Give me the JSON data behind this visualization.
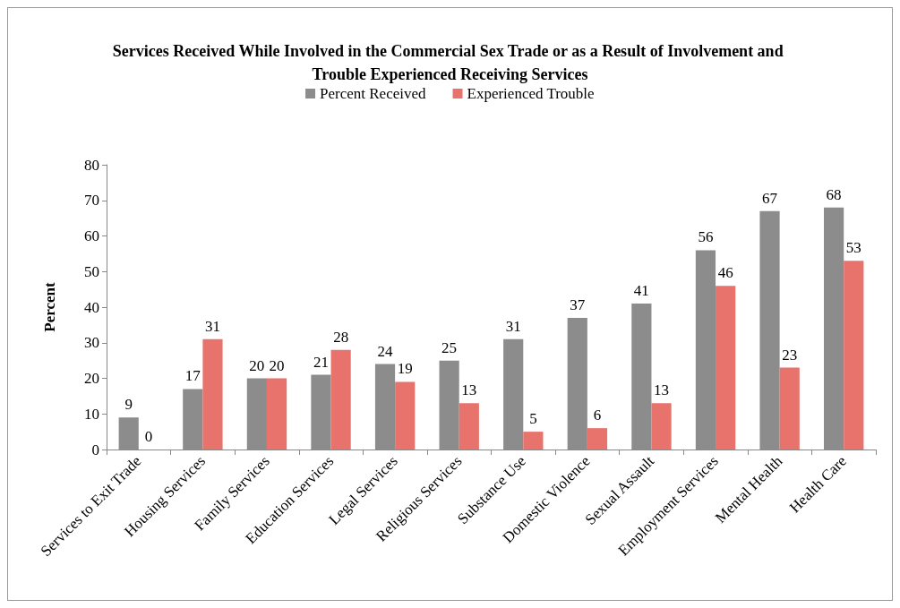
{
  "chart_data": {
    "type": "bar",
    "title": "Services Received While Involved in the Commercial Sex Trade or as a Result of Involvement and Trouble Experienced Receiving Services",
    "ylabel": "Percent",
    "categories": [
      "Services to Exit Trade",
      "Housing Services",
      "Family Services",
      "Education Services",
      "Legal Services",
      "Religious Services",
      "Substance Use",
      "Domestic Violence",
      "Sexual Assault",
      "Employment Services",
      "Mental Health",
      "Health Care"
    ],
    "series": [
      {
        "name": "Percent Received",
        "color": "#8c8c8c",
        "values": [
          9,
          17,
          20,
          21,
          24,
          25,
          31,
          37,
          41,
          56,
          67,
          68
        ]
      },
      {
        "name": "Experienced Trouble",
        "color": "#e8736c",
        "values": [
          0,
          31,
          20,
          28,
          19,
          13,
          5,
          6,
          13,
          46,
          23,
          53
        ]
      }
    ],
    "ylim": [
      0,
      80
    ],
    "yticks": [
      0,
      10,
      20,
      30,
      40,
      50,
      60,
      70,
      80
    ],
    "grid": false,
    "legend": "top",
    "data_labels": true
  }
}
